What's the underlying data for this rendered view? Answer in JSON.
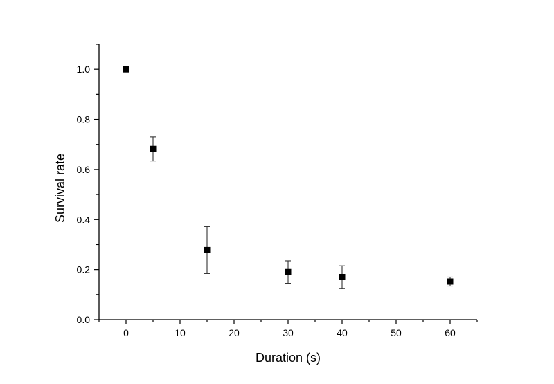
{
  "chart_data": {
    "type": "scatter",
    "xlabel": "Duration (s)",
    "ylabel": "Survival rate",
    "xlim": [
      -5,
      65
    ],
    "ylim": [
      0,
      1.1
    ],
    "x_ticks": [
      0,
      10,
      20,
      30,
      40,
      50,
      60
    ],
    "x_minor_ticks": [
      -5,
      5,
      15,
      25,
      35,
      45,
      55,
      65
    ],
    "y_ticks": [
      0.0,
      0.2,
      0.4,
      0.6,
      0.8,
      1.0
    ],
    "y_minor_ticks": [
      0.1,
      0.3,
      0.5,
      0.7,
      0.9,
      1.1
    ],
    "x_tick_labels": [
      "0",
      "10",
      "20",
      "30",
      "40",
      "50",
      "60"
    ],
    "y_tick_labels": [
      "0.0",
      "0.2",
      "0.4",
      "0.6",
      "0.8",
      "1.0"
    ],
    "grid": false,
    "marker": "square",
    "marker_color": "#000000",
    "series": [
      {
        "x": [
          0,
          5,
          15,
          30,
          40,
          60
        ],
        "y": [
          1.0,
          0.682,
          0.278,
          0.19,
          0.17,
          0.152
        ],
        "error": [
          0.0,
          0.048,
          0.094,
          0.045,
          0.045,
          0.018
        ]
      }
    ]
  }
}
